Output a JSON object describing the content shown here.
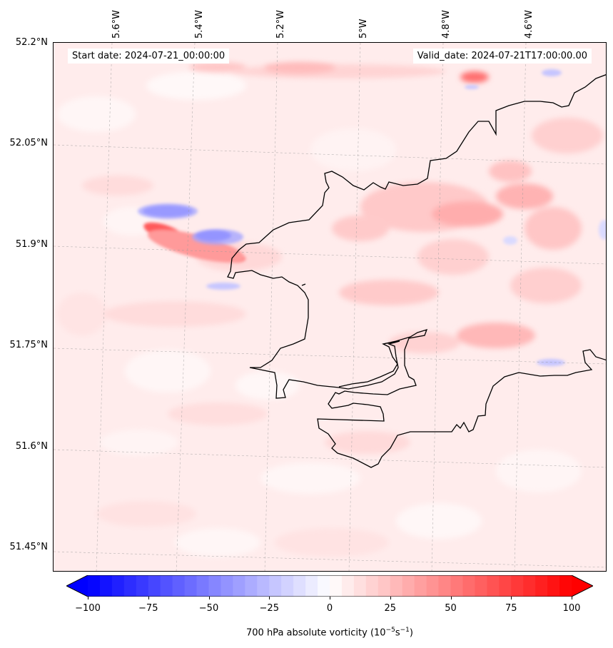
{
  "map": {
    "start_date_text": "Start date: 2024-07-21_00:00:00",
    "valid_date_text": "Valid_date: 2024-07-21T17:00:00.00",
    "lon_labels": [
      "5.6°W",
      "5.4°W",
      "5.2°W",
      "5°W",
      "4.8°W",
      "4.6°W"
    ],
    "lat_labels": [
      "52.2°N",
      "52.05°N",
      "51.9°N",
      "51.75°N",
      "51.6°N",
      "51.45°N"
    ],
    "colors": {
      "negative": "#0000ff",
      "zero": "#ffffff",
      "positive": "#ff0000",
      "coastline": "#000000"
    }
  },
  "colorbar": {
    "label_text": "700 hPa absolute vorticity (10",
    "label_exp1": "−5",
    "label_mid": "s",
    "label_exp2": "−1",
    "label_end": ")",
    "ticks": [
      "−100",
      "−75",
      "−50",
      "−25",
      "0",
      "25",
      "50",
      "75",
      "100"
    ],
    "min": -100,
    "max": 100,
    "extend": "both"
  }
}
